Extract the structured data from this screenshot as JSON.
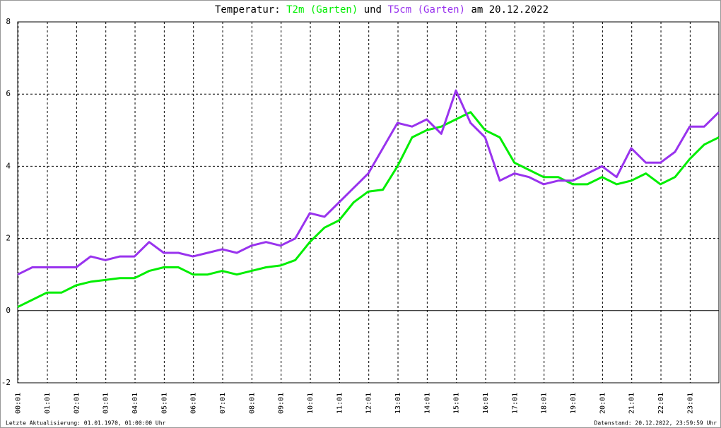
{
  "chart_data": {
    "type": "line",
    "title_prefix": "Temperatur:",
    "title_join": "und",
    "title_suffix": "am 20.12.2022",
    "x": [
      0,
      0.5,
      1,
      1.5,
      2,
      2.5,
      3,
      3.5,
      4,
      4.5,
      5,
      5.5,
      6,
      6.5,
      7,
      7.5,
      8,
      8.5,
      9,
      9.5,
      10,
      10.5,
      11,
      11.5,
      12,
      12.5,
      13,
      13.5,
      14,
      14.5,
      15,
      15.5,
      16,
      16.5,
      17,
      17.5,
      18,
      18.5,
      19,
      19.5,
      20,
      20.5,
      21,
      21.5,
      22,
      22.5,
      23,
      23.5,
      24
    ],
    "series": [
      {
        "name": "T2m (Garten)",
        "color": "#00ee00",
        "values": [
          0.1,
          0.3,
          0.5,
          0.5,
          0.7,
          0.8,
          0.85,
          0.9,
          0.9,
          1.1,
          1.2,
          1.2,
          1.0,
          1.0,
          1.1,
          1.0,
          1.1,
          1.2,
          1.25,
          1.4,
          1.9,
          2.3,
          2.5,
          3.0,
          3.3,
          3.35,
          4.0,
          4.8,
          5.0,
          5.1,
          5.3,
          5.5,
          5.0,
          4.8,
          4.1,
          3.9,
          3.7,
          3.7,
          3.5,
          3.5,
          3.7,
          3.5,
          3.6,
          3.8,
          3.5,
          3.7,
          4.2,
          4.6,
          4.8
        ]
      },
      {
        "name": "T5cm (Garten)",
        "color": "#9933ee",
        "values": [
          1.0,
          1.2,
          1.2,
          1.2,
          1.2,
          1.5,
          1.4,
          1.5,
          1.5,
          1.9,
          1.6,
          1.6,
          1.5,
          1.6,
          1.7,
          1.6,
          1.8,
          1.9,
          1.8,
          2.0,
          2.7,
          2.6,
          3.0,
          3.4,
          3.8,
          4.5,
          5.2,
          5.1,
          5.3,
          4.9,
          6.1,
          5.2,
          4.8,
          3.6,
          3.8,
          3.7,
          3.5,
          3.6,
          3.6,
          3.8,
          4.0,
          3.7,
          4.5,
          4.1,
          4.1,
          4.4,
          5.1,
          5.1,
          5.5
        ]
      }
    ],
    "xlim": [
      0,
      24
    ],
    "xticks": [
      {
        "value": 0.017,
        "label": "00:01"
      },
      {
        "value": 1.017,
        "label": "01:01"
      },
      {
        "value": 2.017,
        "label": "02:01"
      },
      {
        "value": 3.017,
        "label": "03:01"
      },
      {
        "value": 4.017,
        "label": "04:01"
      },
      {
        "value": 5.017,
        "label": "05:01"
      },
      {
        "value": 6.017,
        "label": "06:01"
      },
      {
        "value": 7.017,
        "label": "07:01"
      },
      {
        "value": 8.017,
        "label": "08:01"
      },
      {
        "value": 9.017,
        "label": "09:01"
      },
      {
        "value": 10.017,
        "label": "10:01"
      },
      {
        "value": 11.017,
        "label": "11:01"
      },
      {
        "value": 12.017,
        "label": "12:01"
      },
      {
        "value": 13.017,
        "label": "13:01"
      },
      {
        "value": 14.017,
        "label": "14:01"
      },
      {
        "value": 15.017,
        "label": "15:01"
      },
      {
        "value": 16.017,
        "label": "16:01"
      },
      {
        "value": 17.017,
        "label": "17:01"
      },
      {
        "value": 18.017,
        "label": "18:01"
      },
      {
        "value": 19.017,
        "label": "19:01"
      },
      {
        "value": 20.017,
        "label": "20:01"
      },
      {
        "value": 21.017,
        "label": "21:01"
      },
      {
        "value": 22.017,
        "label": "22:01"
      },
      {
        "value": 23.017,
        "label": "23:01"
      }
    ],
    "ylim": [
      -2,
      8
    ],
    "yticks": [
      -2,
      0,
      2,
      4,
      6,
      8
    ],
    "grid": true,
    "footer_left": "Letzte Aktualisierung: 01.01.1970, 01:00:00 Uhr",
    "footer_right": "Datenstand: 20.12.2022, 23:59:59 Uhr"
  }
}
